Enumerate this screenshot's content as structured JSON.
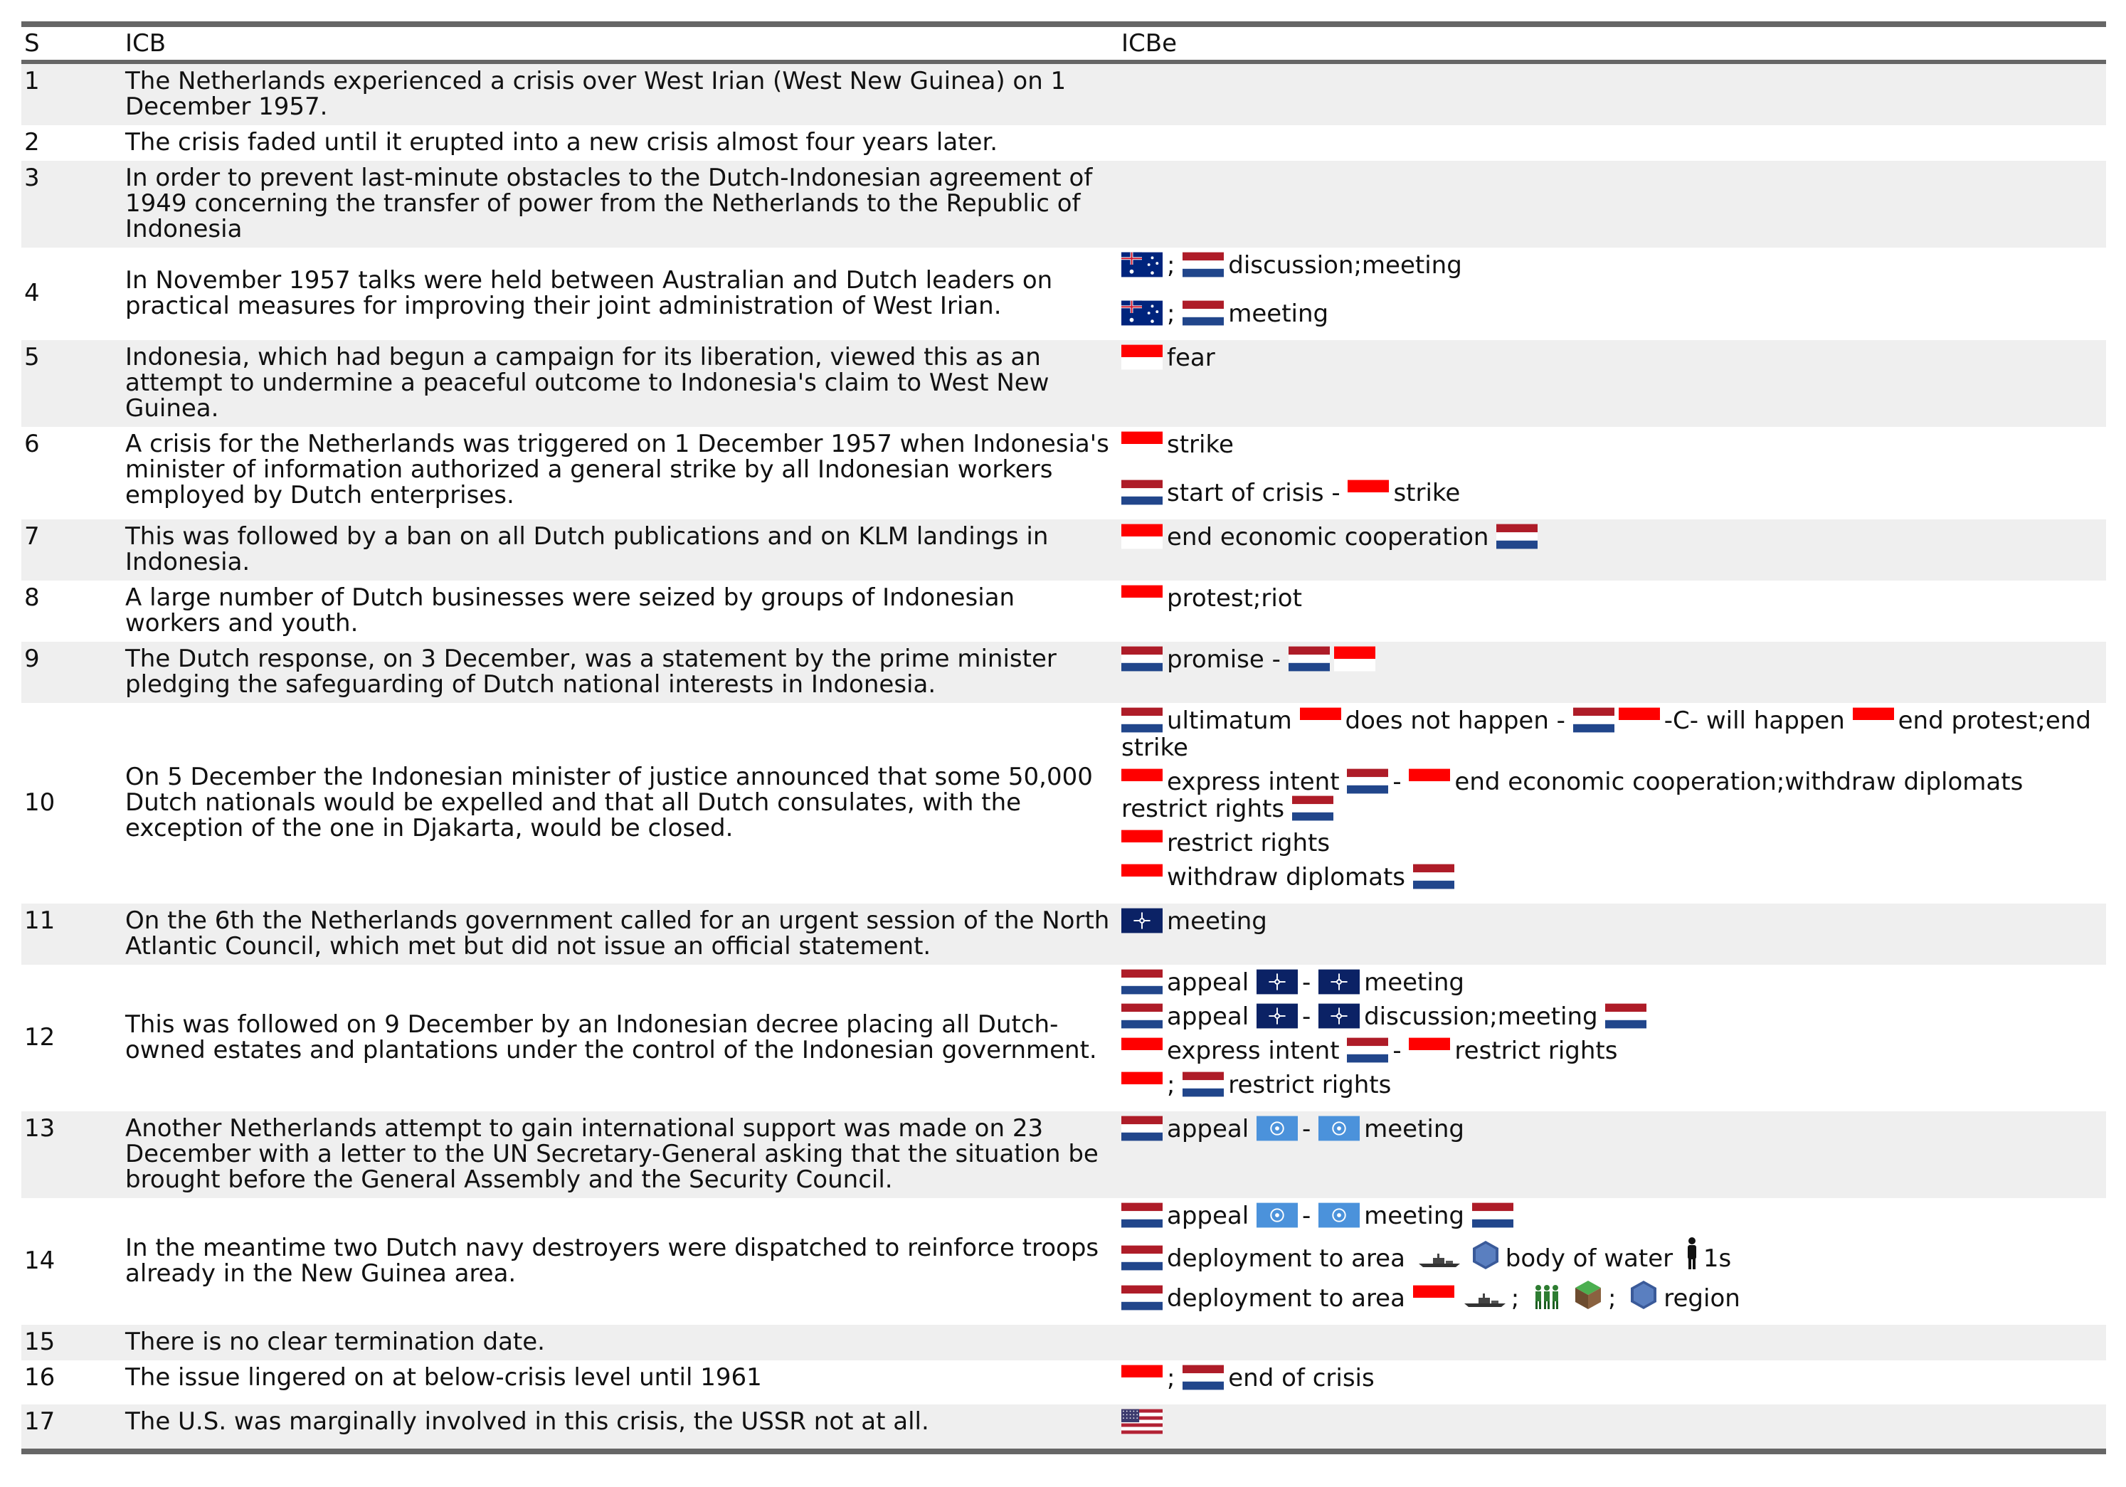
{
  "columns": {
    "s": "S",
    "icb": "ICB",
    "icbe": "ICBe"
  },
  "colors": {
    "nl_red": "#ae1c28",
    "nl_blue": "#21468b",
    "id_red": "#ff0000",
    "nato_blue": "#0b2265",
    "un_blue": "#4b92db",
    "rule_gray": "#666666",
    "shade": "#efefef"
  },
  "rows": [
    {
      "s": "1",
      "icb": "The Netherlands experienced a crisis over West Irian (West New Guinea) on 1 December 1957.",
      "events": []
    },
    {
      "s": "2",
      "icb": "The crisis faded until it erupted into a new crisis almost four years later.",
      "events": []
    },
    {
      "s": "3",
      "icb": "In order to prevent last-minute obstacles to the Dutch-Indonesian agreement of 1949 concerning the transfer of power from the Netherlands to the Republic of Indonesia",
      "events": []
    },
    {
      "s": "4",
      "icb": "In November 1957 talks were held between Australian and Dutch leaders on practical measures for improving their joint administration of West Irian.",
      "events": [
        {
          "parts": [
            {
              "flag": "australia"
            },
            {
              "text": ";"
            },
            {
              "flag": "netherlands"
            },
            {
              "text": "discussion;meeting"
            }
          ]
        },
        {
          "parts": [
            {
              "flag": "australia"
            },
            {
              "text": ";"
            },
            {
              "flag": "netherlands"
            },
            {
              "text": "meeting"
            }
          ]
        }
      ]
    },
    {
      "s": "5",
      "icb": "Indonesia, which had begun a campaign for its liberation, viewed this as an attempt to undermine a peaceful outcome to Indonesia's claim to West New Guinea.",
      "events": [
        {
          "parts": [
            {
              "flag": "indonesia"
            },
            {
              "text": "fear"
            }
          ]
        }
      ]
    },
    {
      "s": "6",
      "icb": "A crisis for the Netherlands was triggered on 1 December 1957 when Indonesia's minister of information authorized a general strike by all Indonesian workers employed by Dutch enterprises.",
      "events": [
        {
          "parts": [
            {
              "flag": "indonesia"
            },
            {
              "text": "strike"
            }
          ]
        },
        {
          "parts": [
            {
              "flag": "netherlands"
            },
            {
              "text": "start of crisis -"
            },
            {
              "flag": "indonesia"
            },
            {
              "text": "strike"
            }
          ]
        }
      ]
    },
    {
      "s": "7",
      "icb": "This was followed by a ban on all Dutch publications and on KLM landings in Indonesia.",
      "events": [
        {
          "parts": [
            {
              "flag": "indonesia"
            },
            {
              "text": "end economic cooperation"
            },
            {
              "flag": "netherlands"
            }
          ]
        }
      ]
    },
    {
      "s": "8",
      "icb": "A large number of Dutch businesses were seized by groups of Indonesian workers and youth.",
      "events": [
        {
          "parts": [
            {
              "flag": "indonesia"
            },
            {
              "text": "protest;riot"
            }
          ]
        }
      ]
    },
    {
      "s": "9",
      "icb": "The Dutch response, on 3 December, was a statement by the prime minister pledging the safeguarding of Dutch national interests in Indonesia.",
      "events": [
        {
          "parts": [
            {
              "flag": "netherlands"
            },
            {
              "text": "promise -"
            },
            {
              "flag": "netherlands"
            },
            {
              "flag": "indonesia"
            }
          ]
        }
      ]
    },
    {
      "s": "10",
      "icb": "On 5 December the Indonesian minister of justice announced that some 50,000 Dutch nationals would be expelled and that all Dutch consulates, with the exception of the one in Djakarta, would be closed.",
      "events": [
        {
          "parts": [
            {
              "flag": "netherlands"
            },
            {
              "text": "ultimatum"
            },
            {
              "flag": "indonesia"
            },
            {
              "text": "does not happen -"
            },
            {
              "flag": "netherlands"
            },
            {
              "flag": "indonesia"
            },
            {
              "text": "-C- will happen"
            },
            {
              "flag": "indonesia"
            },
            {
              "text": "end protest;end strike"
            }
          ]
        },
        {
          "parts": [
            {
              "flag": "indonesia"
            },
            {
              "text": "express intent"
            },
            {
              "flag": "netherlands"
            },
            {
              "text": "-"
            },
            {
              "flag": "indonesia"
            },
            {
              "text": "end economic cooperation;withdraw diplomats restrict rights"
            },
            {
              "flag": "netherlands"
            }
          ]
        },
        {
          "parts": [
            {
              "flag": "indonesia"
            },
            {
              "text": "restrict rights"
            }
          ]
        },
        {
          "parts": [
            {
              "flag": "indonesia"
            },
            {
              "text": "withdraw diplomats"
            },
            {
              "flag": "netherlands"
            }
          ]
        }
      ]
    },
    {
      "s": "11",
      "icb": "On the 6th the Netherlands government called for an urgent session of the North Atlantic Council, which met but did not issue an official statement.",
      "events": [
        {
          "parts": [
            {
              "flag": "nato"
            },
            {
              "text": "meeting"
            }
          ]
        }
      ]
    },
    {
      "s": "12",
      "icb": "This was followed on 9 December by an Indonesian decree placing all Dutch-owned estates and plantations under the control of the Indonesian government.",
      "events": [
        {
          "parts": [
            {
              "flag": "netherlands"
            },
            {
              "text": "appeal"
            },
            {
              "flag": "nato"
            },
            {
              "text": "-"
            },
            {
              "flag": "nato"
            },
            {
              "text": "meeting"
            }
          ]
        },
        {
          "parts": [
            {
              "flag": "netherlands"
            },
            {
              "text": "appeal"
            },
            {
              "flag": "nato"
            },
            {
              "text": "-"
            },
            {
              "flag": "nato"
            },
            {
              "text": "discussion;meeting"
            },
            {
              "flag": "netherlands"
            }
          ]
        },
        {
          "parts": [
            {
              "flag": "indonesia"
            },
            {
              "text": "express intent"
            },
            {
              "flag": "netherlands"
            },
            {
              "text": "-"
            },
            {
              "flag": "indonesia"
            },
            {
              "text": "restrict rights"
            }
          ]
        },
        {
          "parts": [
            {
              "flag": "indonesia"
            },
            {
              "text": ";"
            },
            {
              "flag": "netherlands"
            },
            {
              "text": "restrict rights"
            }
          ]
        }
      ]
    },
    {
      "s": "13",
      "icb": "Another Netherlands attempt to gain international support was made on 23 December with a letter to the UN Secretary-General asking that the situation be brought before the General Assembly and the Security Council.",
      "events": [
        {
          "parts": [
            {
              "flag": "netherlands"
            },
            {
              "text": "appeal"
            },
            {
              "flag": "un"
            },
            {
              "text": "-"
            },
            {
              "flag": "un"
            },
            {
              "text": "meeting"
            }
          ]
        }
      ]
    },
    {
      "s": "14",
      "icb": "In the meantime two Dutch navy destroyers were dispatched to reinforce troops already in the New Guinea area.",
      "events": [
        {
          "parts": [
            {
              "flag": "netherlands"
            },
            {
              "text": "appeal"
            },
            {
              "flag": "un"
            },
            {
              "text": "-"
            },
            {
              "flag": "un"
            },
            {
              "text": "meeting"
            },
            {
              "flag": "netherlands"
            }
          ]
        },
        {
          "parts": [
            {
              "flag": "netherlands"
            },
            {
              "text": "deployment to area"
            },
            {
              "icon": "warship-icon"
            },
            {
              "icon": "water-hexagon-icon"
            },
            {
              "text": "body of water"
            },
            {
              "icon": "person-icon"
            },
            {
              "text": "1s"
            }
          ]
        },
        {
          "parts": [
            {
              "flag": "netherlands"
            },
            {
              "text": "deployment to area"
            },
            {
              "flag": "indonesia"
            },
            {
              "icon": "warship-icon"
            },
            {
              "text": ";"
            },
            {
              "icon": "soldiers-icon"
            },
            {
              "icon": "land-cube-icon"
            },
            {
              "text": ";"
            },
            {
              "icon": "water-hexagon-icon"
            },
            {
              "text": "region"
            }
          ]
        }
      ]
    },
    {
      "s": "15",
      "icb": "There is no clear termination date.",
      "events": []
    },
    {
      "s": "16",
      "icb": "The issue lingered on at below-crisis level until 1961",
      "events": [
        {
          "parts": [
            {
              "flag": "indonesia"
            },
            {
              "text": ";"
            },
            {
              "flag": "netherlands"
            },
            {
              "text": "end of crisis"
            }
          ]
        }
      ]
    },
    {
      "s": "17",
      "icb": "The U.S. was marginally involved in this crisis, the USSR not at all.",
      "events": [
        {
          "parts": [
            {
              "flag": "usa"
            }
          ]
        }
      ]
    }
  ]
}
